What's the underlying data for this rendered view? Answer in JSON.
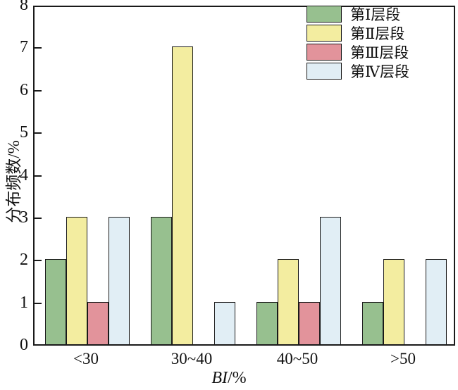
{
  "chart_data": {
    "type": "bar",
    "title": "",
    "categories": [
      "<30",
      "30~40",
      "40~50",
      ">50"
    ],
    "series": [
      {
        "name": "第Ⅰ层段",
        "color": "#97C08F",
        "values": [
          2,
          3,
          1,
          1
        ]
      },
      {
        "name": "第Ⅱ层段",
        "color": "#F3EDA0",
        "values": [
          3,
          7,
          2,
          2
        ]
      },
      {
        "name": "第Ⅲ层段",
        "color": "#E2939B",
        "values": [
          1,
          0,
          1,
          0
        ]
      },
      {
        "name": "第Ⅳ层段",
        "color": "#E1EEF5",
        "values": [
          3,
          1,
          3,
          2
        ]
      }
    ],
    "xlabel": "BI/%",
    "xlabel_italic": "BI",
    "xlabel_unit": "/%",
    "ylabel": "分布频数/%",
    "ylim": [
      0,
      8
    ],
    "yticks": [
      0,
      1,
      2,
      3,
      4,
      5,
      6,
      7,
      8
    ],
    "legend_position": "top-right",
    "grid": false,
    "axis_color": "#1a1a1a",
    "bar_border_color": "#1a1a1a",
    "background_color": "#ffffff"
  }
}
